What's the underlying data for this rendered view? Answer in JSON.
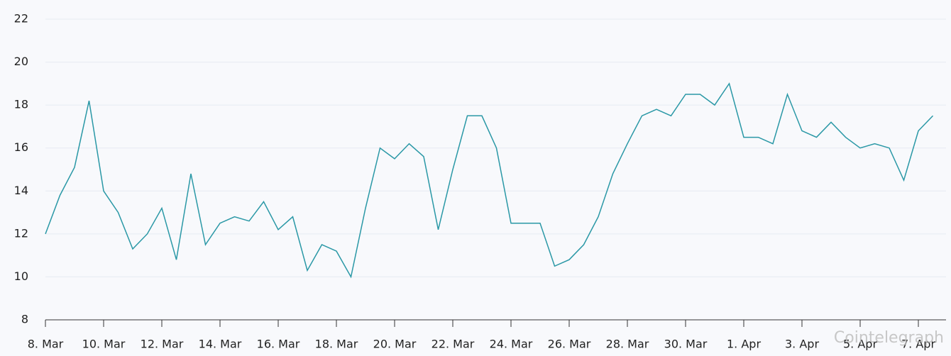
{
  "chart_data": {
    "type": "line",
    "categories": [
      "8. Mar",
      null,
      null,
      null,
      "10. Mar",
      null,
      null,
      null,
      "12. Mar",
      null,
      null,
      null,
      "14. Mar",
      null,
      null,
      null,
      "16. Mar",
      null,
      null,
      null,
      "18. Mar",
      null,
      null,
      null,
      "20. Mar",
      null,
      null,
      null,
      "22. Mar",
      null,
      null,
      null,
      "24. Mar",
      null,
      null,
      null,
      "26. Mar",
      null,
      null,
      null,
      "28. Mar",
      null,
      null,
      null,
      "30. Mar",
      null,
      null,
      null,
      "1. Apr",
      null,
      null,
      null,
      "3. Apr",
      null,
      null,
      null,
      "5. Apr",
      null,
      null,
      null,
      "7. Apr",
      null
    ],
    "series": [
      {
        "color": "#2a98a6",
        "values": [
          12.0,
          13.8,
          15.1,
          18.2,
          14.0,
          13.0,
          11.3,
          12.0,
          13.2,
          10.8,
          14.8,
          11.5,
          12.5,
          12.8,
          12.6,
          13.5,
          12.2,
          12.8,
          10.3,
          11.5,
          11.2,
          10.0,
          13.2,
          16.0,
          15.5,
          16.2,
          15.6,
          12.2,
          15.0,
          17.5,
          17.5,
          16.0,
          12.5,
          12.5,
          12.5,
          10.5,
          10.8,
          11.5,
          12.8,
          14.8,
          16.2,
          17.5,
          17.8,
          17.5,
          18.5,
          18.5,
          18.0,
          19.0,
          16.5,
          16.5,
          16.2,
          18.5,
          16.8,
          16.5,
          17.2,
          16.5,
          16.0,
          16.2,
          16.0,
          14.5,
          16.8,
          17.5
        ]
      }
    ],
    "ylim": [
      8,
      22
    ],
    "yticks": [
      8,
      10,
      12,
      14,
      16,
      18,
      20,
      22
    ],
    "grid": true,
    "watermark": "Cointelegraph"
  }
}
